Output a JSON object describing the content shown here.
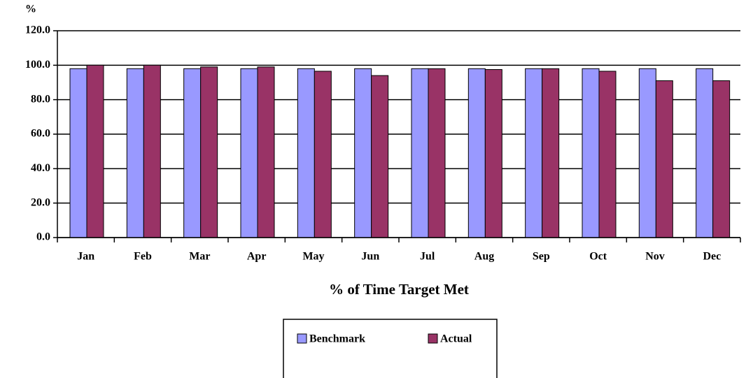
{
  "chart_data": {
    "type": "bar",
    "title": "% of Time Target Met",
    "y_label": "%",
    "categories": [
      "Jan",
      "Feb",
      "Mar",
      "Apr",
      "May",
      "Jun",
      "Jul",
      "Aug",
      "Sep",
      "Oct",
      "Nov",
      "Dec"
    ],
    "series": [
      {
        "name": "Benchmark",
        "color": "#9999ff",
        "values": [
          98,
          98,
          98,
          98,
          98,
          98,
          98,
          98,
          98,
          98,
          98,
          98
        ]
      },
      {
        "name": "Actual",
        "color": "#993366",
        "values": [
          100,
          100,
          99,
          99,
          96.5,
          94,
          98,
          97.5,
          98,
          96.5,
          91,
          91
        ]
      }
    ],
    "ylim": [
      0,
      120
    ],
    "yticks": [
      {
        "value": 0,
        "label": "0.0"
      },
      {
        "value": 20,
        "label": "20.0"
      },
      {
        "value": 40,
        "label": "40.0"
      },
      {
        "value": 60,
        "label": "60.0"
      },
      {
        "value": 80,
        "label": "80.0"
      },
      {
        "value": 100,
        "label": "100.0"
      },
      {
        "value": 120,
        "label": "120.0"
      }
    ],
    "grid": true,
    "legend": "bottom"
  }
}
